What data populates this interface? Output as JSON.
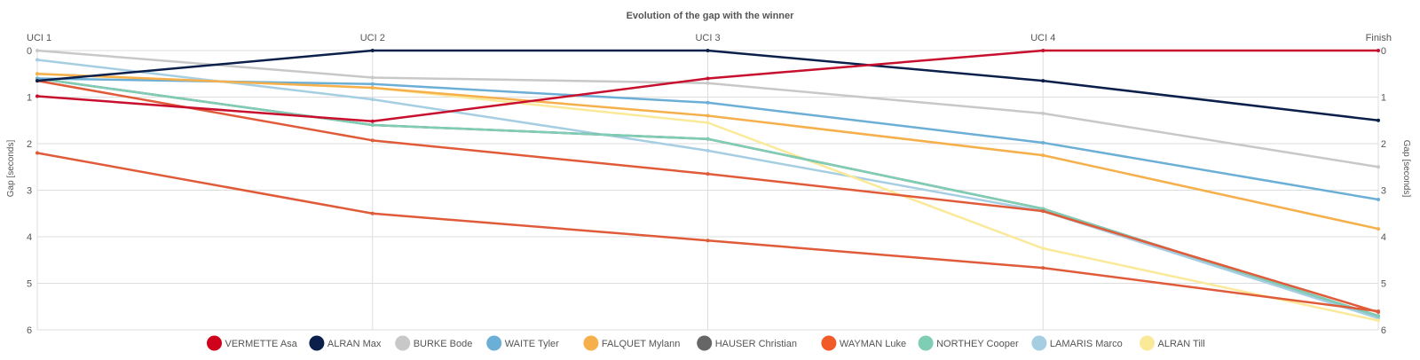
{
  "chart_data": {
    "type": "line",
    "title": "Evolution of the gap with the winner",
    "ylabel": "Gap [seconds]",
    "categories": [
      "UCI 1",
      "UCI 2",
      "UCI 3",
      "UCI 4",
      "Finish"
    ],
    "ylim": [
      0,
      6
    ],
    "y_reversed": true,
    "yticks": [
      0,
      1,
      2,
      3,
      4,
      5,
      6
    ],
    "grid": true,
    "legend_position": "bottom",
    "series": [
      {
        "name": "LAMARIS Marco",
        "color": "#a6cee3",
        "values": [
          0.2,
          1.05,
          2.15,
          3.45,
          5.75
        ]
      },
      {
        "name": "ALRAN Till",
        "color": "#fbe99a",
        "values": [
          0.5,
          0.8,
          1.55,
          4.25,
          5.8
        ]
      },
      {
        "name": "HAUSER Christian",
        "color": "#666666",
        "values": [
          0.6,
          1.6,
          1.9,
          3.4,
          5.7
        ]
      },
      {
        "name": "NORTHEY Cooper",
        "color": "#7fcdb5",
        "values": [
          0.6,
          1.6,
          1.9,
          3.4,
          5.7
        ]
      },
      {
        "name": "BURKE Bode",
        "color": "#c8c8c8",
        "values": [
          0.0,
          0.58,
          0.7,
          1.35,
          2.5
        ]
      },
      {
        "name": "WAITE Tyler",
        "color": "#6baed6",
        "values": [
          0.6,
          0.72,
          1.12,
          1.98,
          3.2
        ]
      },
      {
        "name": "FALQUET Mylann",
        "color": "#f5b04c",
        "values": [
          0.5,
          0.8,
          1.4,
          2.25,
          3.83
        ]
      },
      {
        "name": "WAYMAN Luke",
        "color": "#e05b3a",
        "values": [
          0.65,
          1.93,
          2.65,
          3.45,
          5.62
        ]
      },
      {
        "name": "WAYMAN Luke (2)",
        "color": "#e05b3a",
        "values": [
          2.2,
          3.5,
          4.08,
          4.67,
          5.6
        ]
      },
      {
        "name": "ALRAN Max",
        "color": "#0b1f4b",
        "values": [
          0.65,
          0.0,
          0.0,
          0.65,
          1.5
        ]
      },
      {
        "name": "VERMETTE Asa",
        "color": "#c8102e",
        "values": [
          0.98,
          1.52,
          0.6,
          0.0,
          0.0
        ]
      }
    ],
    "legend": [
      {
        "name": "VERMETTE Asa",
        "color": "#d0021b"
      },
      {
        "name": "ALRAN Max",
        "color": "#0b1f4b"
      },
      {
        "name": "BURKE Bode",
        "color": "#c8c8c8"
      },
      {
        "name": "WAITE Tyler",
        "color": "#6baed6"
      },
      {
        "name": "FALQUET Mylann",
        "color": "#f5b04c"
      },
      {
        "name": "HAUSER Christian",
        "color": "#666666"
      },
      {
        "name": "WAYMAN Luke",
        "color": "#f15a29"
      },
      {
        "name": "NORTHEY Cooper",
        "color": "#7fcdb5"
      },
      {
        "name": "LAMARIS Marco",
        "color": "#a6cee3"
      },
      {
        "name": "ALRAN Till",
        "color": "#fbe99a"
      }
    ]
  }
}
